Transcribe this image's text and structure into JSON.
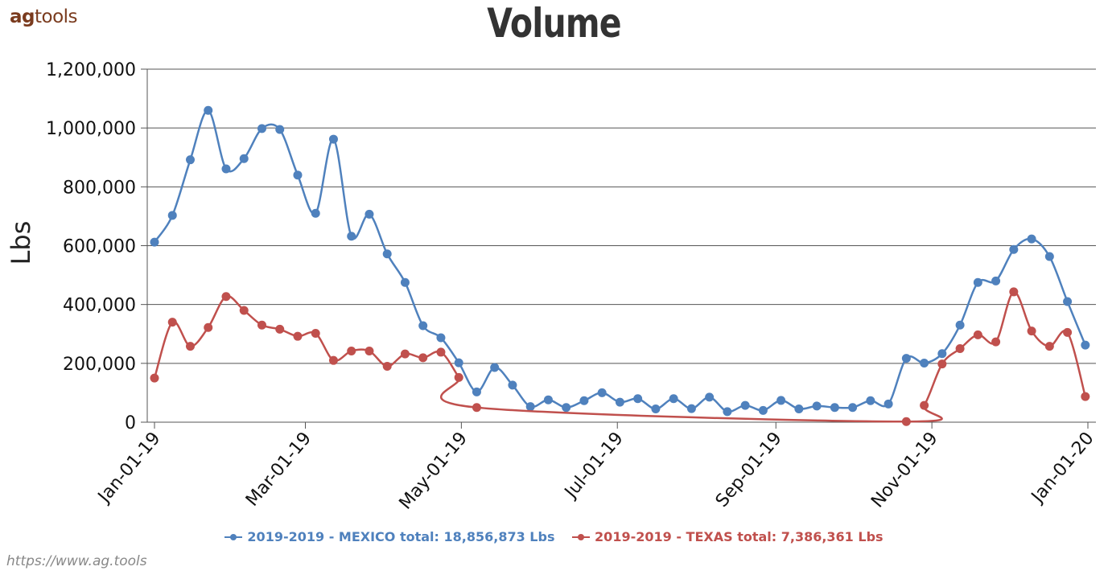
{
  "logo": {
    "bold": "ag",
    "rest": "tools"
  },
  "footer_url": "https://www.ag.tools",
  "chart_data": {
    "type": "line",
    "title": "Volume",
    "ylabel": "Lbs",
    "xlabel": "",
    "ylim": [
      0,
      1200000
    ],
    "yticks": [
      0,
      200000,
      400000,
      600000,
      800000,
      1000000,
      1200000
    ],
    "ytick_labels": [
      "0",
      "200,000",
      "400,000",
      "600,000",
      "800,000",
      "1,000,000",
      "1,200,000"
    ],
    "xlim": [
      "2019-01-01",
      "2020-01-01"
    ],
    "xticks": [
      "2019-01-01",
      "2019-03-01",
      "2019-05-01",
      "2019-07-01",
      "2019-09-01",
      "2019-11-01",
      "2020-01-01"
    ],
    "xtick_labels": [
      "Jan-01-19",
      "Mar-01-19",
      "May-01-19",
      "Jul-01-19",
      "Sep-01-19",
      "Nov-01-19",
      "Jan-01-20"
    ],
    "grid": "horizontal",
    "legend": "bottom-center",
    "series": [
      {
        "name": "2019-2019 - MEXICO total: 18,856,873 Lbs",
        "color": "#4f81bd",
        "points": [
          [
            "2019-01-01",
            612000
          ],
          [
            "2019-01-08",
            703000
          ],
          [
            "2019-01-15",
            892000
          ],
          [
            "2019-01-22",
            1060000
          ],
          [
            "2019-01-29",
            861000
          ],
          [
            "2019-02-05",
            896000
          ],
          [
            "2019-02-12",
            998000
          ],
          [
            "2019-02-19",
            995000
          ],
          [
            "2019-02-26",
            840000
          ],
          [
            "2019-03-05",
            710000
          ],
          [
            "2019-03-12",
            962000
          ],
          [
            "2019-03-19",
            632000
          ],
          [
            "2019-03-26",
            707000
          ],
          [
            "2019-04-02",
            572000
          ],
          [
            "2019-04-09",
            475000
          ],
          [
            "2019-04-16",
            328000
          ],
          [
            "2019-04-23",
            287000
          ],
          [
            "2019-04-30",
            202000
          ],
          [
            "2019-05-07",
            103000
          ],
          [
            "2019-05-14",
            186000
          ],
          [
            "2019-05-21",
            126000
          ],
          [
            "2019-05-28",
            53000
          ],
          [
            "2019-06-04",
            76000
          ],
          [
            "2019-06-11",
            50000
          ],
          [
            "2019-06-18",
            73000
          ],
          [
            "2019-06-25",
            100000
          ],
          [
            "2019-07-02",
            68000
          ],
          [
            "2019-07-09",
            80000
          ],
          [
            "2019-07-16",
            45000
          ],
          [
            "2019-07-23",
            80000
          ],
          [
            "2019-07-30",
            46000
          ],
          [
            "2019-08-06",
            85000
          ],
          [
            "2019-08-13",
            36000
          ],
          [
            "2019-08-20",
            57000
          ],
          [
            "2019-08-27",
            40000
          ],
          [
            "2019-09-03",
            74000
          ],
          [
            "2019-09-10",
            45000
          ],
          [
            "2019-09-17",
            55000
          ],
          [
            "2019-09-24",
            50000
          ],
          [
            "2019-10-01",
            50000
          ],
          [
            "2019-10-08",
            73000
          ],
          [
            "2019-10-15",
            62000
          ],
          [
            "2019-10-22",
            217000
          ],
          [
            "2019-10-29",
            201000
          ],
          [
            "2019-11-05",
            233000
          ],
          [
            "2019-11-12",
            330000
          ],
          [
            "2019-11-19",
            475000
          ],
          [
            "2019-11-26",
            480000
          ],
          [
            "2019-12-03",
            587000
          ],
          [
            "2019-12-10",
            623000
          ],
          [
            "2019-12-17",
            563000
          ],
          [
            "2019-12-24",
            410000
          ],
          [
            "2019-12-31",
            262000
          ]
        ]
      },
      {
        "name": "2019-2019 - TEXAS total: 7,386,361 Lbs",
        "color": "#c0504d",
        "points": [
          [
            "2019-01-01",
            150000
          ],
          [
            "2019-01-08",
            340000
          ],
          [
            "2019-01-15",
            258000
          ],
          [
            "2019-01-22",
            322000
          ],
          [
            "2019-01-29",
            427000
          ],
          [
            "2019-02-05",
            380000
          ],
          [
            "2019-02-12",
            330000
          ],
          [
            "2019-02-19",
            316000
          ],
          [
            "2019-02-26",
            292000
          ],
          [
            "2019-03-05",
            302000
          ],
          [
            "2019-03-12",
            210000
          ],
          [
            "2019-03-19",
            242000
          ],
          [
            "2019-03-26",
            242000
          ],
          [
            "2019-04-02",
            190000
          ],
          [
            "2019-04-09",
            232000
          ],
          [
            "2019-04-16",
            219000
          ],
          [
            "2019-04-23",
            238000
          ],
          [
            "2019-04-30",
            152000
          ],
          [
            "2019-05-07",
            50000
          ],
          [
            "2019-10-22",
            2000
          ],
          [
            "2019-10-29",
            57000
          ],
          [
            "2019-11-05",
            198000
          ],
          [
            "2019-11-12",
            250000
          ],
          [
            "2019-11-19",
            297000
          ],
          [
            "2019-11-26",
            273000
          ],
          [
            "2019-12-03",
            443000
          ],
          [
            "2019-12-10",
            310000
          ],
          [
            "2019-12-17",
            258000
          ],
          [
            "2019-12-24",
            305000
          ],
          [
            "2019-12-31",
            87000
          ]
        ]
      }
    ]
  }
}
